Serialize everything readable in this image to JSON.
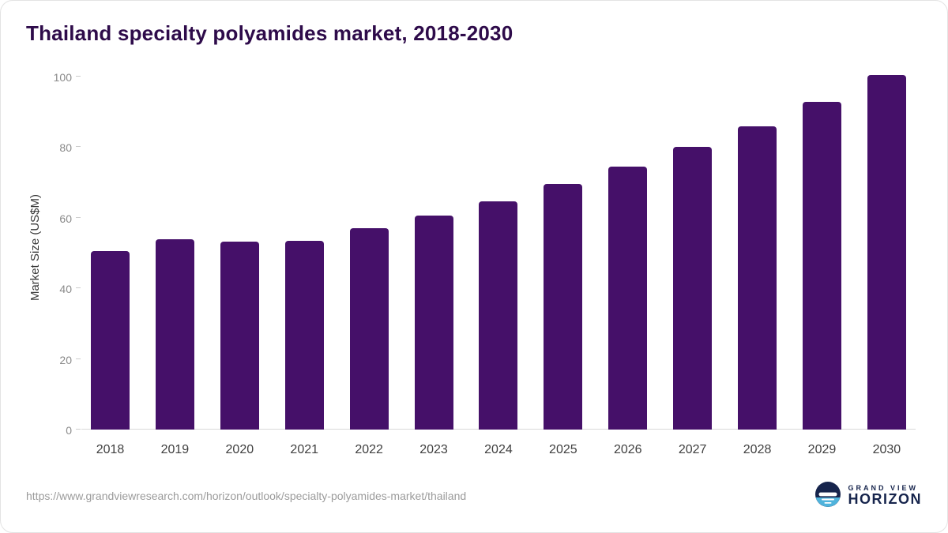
{
  "title": "Thailand specialty polyamides market, 2018-2030",
  "footer": {
    "source_url": "https://www.grandviewresearch.com/horizon/outlook/specialty-polyamides-market/thailand",
    "logo": {
      "line1": "GRAND VIEW",
      "line2": "HORIZON",
      "navy": "#16244c",
      "light_blue": "#4fb3dc"
    }
  },
  "chart_data": {
    "type": "bar",
    "title": "Thailand specialty polyamides market, 2018-2030",
    "categories": [
      "2018",
      "2019",
      "2020",
      "2021",
      "2022",
      "2023",
      "2024",
      "2025",
      "2026",
      "2027",
      "2028",
      "2029",
      "2030"
    ],
    "values": [
      50.5,
      54.0,
      53.3,
      53.5,
      57.0,
      60.7,
      64.7,
      69.5,
      74.5,
      80.0,
      86.0,
      92.8,
      100.5
    ],
    "xlabel": "",
    "ylabel": "Market Size (US$M)",
    "ylim": [
      0,
      100
    ],
    "yticks": [
      0,
      20,
      40,
      60,
      80,
      100
    ],
    "grid": false,
    "legend": "none",
    "bar_color": "#451069"
  }
}
